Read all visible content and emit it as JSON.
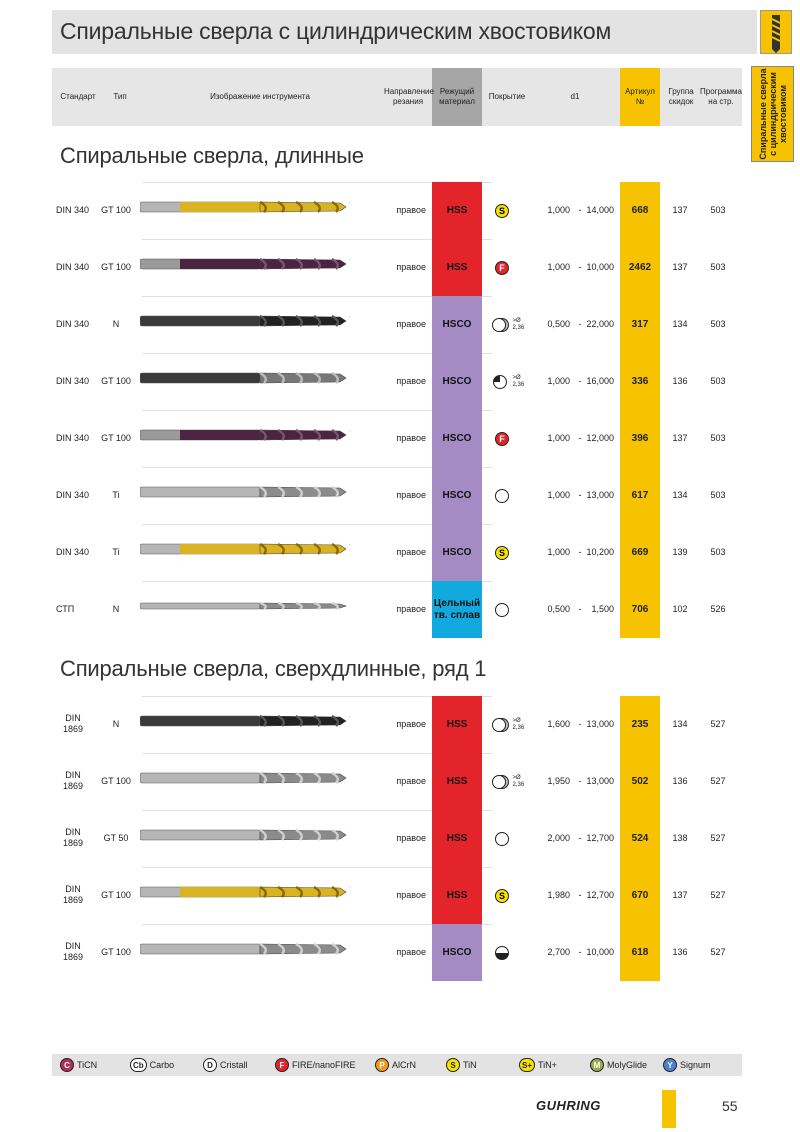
{
  "title": "Спиральные сверла с цилиндрическим хвостовиком",
  "side_tab": "Спиральные сверла с цилиндрическим хвостовиком",
  "headers": {
    "standard": "Стандарт",
    "type": "Тип",
    "image": "Изображение инструмента",
    "direction": "Направление резания",
    "material": "Режущий материал",
    "coating": "Покрытие",
    "d1": "d1",
    "article": "Артикул №",
    "group": "Группа скидок",
    "program": "Программа на стр."
  },
  "colors": {
    "hss": "#e3242b",
    "hsco": "#a48bc4",
    "carbide": "#12a9de",
    "article": "#f7c300",
    "band": "#e6e6e6"
  },
  "sections": [
    {
      "title": "Спиральные сверла, длинные",
      "rows": [
        {
          "std": "DIN 340",
          "type": "GT 100",
          "tool": "gold",
          "dir": "правое",
          "mat": "HSS",
          "mat_class": "hss",
          "coat": "S",
          "coat_note": "",
          "d_from": "1,000",
          "dash": "-",
          "d_to": "14,000",
          "article": "668",
          "group": "137",
          "page": "503"
        },
        {
          "std": "DIN 340",
          "type": "GT 100",
          "tool": "purple",
          "dir": "правое",
          "mat": "HSS",
          "mat_class": "hss",
          "coat": "F",
          "coat_note": "",
          "d_from": "1,000",
          "dash": "-",
          "d_to": "10,000",
          "article": "2462",
          "group": "137",
          "page": "503"
        },
        {
          "std": "DIN 340",
          "type": "N",
          "tool": "black",
          "dir": "правое",
          "mat": "HSCO",
          "mat_class": "hsco",
          "coat": "steam",
          "coat_note": ">Ø 2,36",
          "d_from": "0,500",
          "dash": "-",
          "d_to": "22,000",
          "article": "317",
          "group": "134",
          "page": "503"
        },
        {
          "std": "DIN 340",
          "type": "GT 100",
          "tool": "black-steel",
          "dir": "правое",
          "mat": "HSCO",
          "mat_class": "hsco",
          "coat": "half",
          "coat_note": ">Ø 2,36",
          "d_from": "1,000",
          "dash": "-",
          "d_to": "16,000",
          "article": "336",
          "group": "136",
          "page": "503"
        },
        {
          "std": "DIN 340",
          "type": "GT 100",
          "tool": "purple",
          "dir": "правое",
          "mat": "HSCO",
          "mat_class": "hsco",
          "coat": "F",
          "coat_note": "",
          "d_from": "1,000",
          "dash": "-",
          "d_to": "12,000",
          "article": "396",
          "group": "137",
          "page": "503"
        },
        {
          "std": "DIN 340",
          "type": "Ti",
          "tool": "silver",
          "dir": "правое",
          "mat": "HSCO",
          "mat_class": "hsco",
          "coat": "none",
          "coat_note": "",
          "d_from": "1,000",
          "dash": "-",
          "d_to": "13,000",
          "article": "617",
          "group": "134",
          "page": "503"
        },
        {
          "std": "DIN 340",
          "type": "Ti",
          "tool": "gold",
          "dir": "правое",
          "mat": "HSCO",
          "mat_class": "hsco",
          "coat": "S",
          "coat_note": "",
          "d_from": "1,000",
          "dash": "-",
          "d_to": "10,200",
          "article": "669",
          "group": "139",
          "page": "503"
        },
        {
          "std": "СТП",
          "type": "N",
          "tool": "silver-thin",
          "dir": "правое",
          "mat": "Цельный тв. сплав",
          "mat_class": "carbide",
          "coat": "none",
          "coat_note": "",
          "d_from": "0,500",
          "dash": "-",
          "d_to": "1,500",
          "article": "706",
          "group": "102",
          "page": "526"
        }
      ]
    },
    {
      "title": "Спиральные сверла, сверхдлинные, ряд 1",
      "rows": [
        {
          "std": "DIN 1869",
          "type": "N",
          "tool": "black",
          "dir": "правое",
          "mat": "HSS",
          "mat_class": "hss",
          "coat": "steam",
          "coat_note": ">Ø 2,36",
          "d_from": "1,600",
          "dash": "-",
          "d_to": "13,000",
          "article": "235",
          "group": "134",
          "page": "527"
        },
        {
          "std": "DIN 1869",
          "type": "GT 100",
          "tool": "silver",
          "dir": "правое",
          "mat": "HSS",
          "mat_class": "hss",
          "coat": "steam",
          "coat_note": ">Ø 2,36",
          "d_from": "1,950",
          "dash": "-",
          "d_to": "13,000",
          "article": "502",
          "group": "136",
          "page": "527"
        },
        {
          "std": "DIN 1869",
          "type": "GT 50",
          "tool": "silver",
          "dir": "правое",
          "mat": "HSS",
          "mat_class": "hss",
          "coat": "none",
          "coat_note": "",
          "d_from": "2,000",
          "dash": "-",
          "d_to": "12,700",
          "article": "524",
          "group": "138",
          "page": "527"
        },
        {
          "std": "DIN 1869",
          "type": "GT 100",
          "tool": "gold",
          "dir": "правое",
          "mat": "HSS",
          "mat_class": "hss",
          "coat": "S",
          "coat_note": "",
          "d_from": "1,980",
          "dash": "-",
          "d_to": "12,700",
          "article": "670",
          "group": "137",
          "page": "527"
        },
        {
          "std": "DIN 1869",
          "type": "GT 100",
          "tool": "silver",
          "dir": "правое",
          "mat": "HSCO",
          "mat_class": "hsco",
          "coat": "half-bottom",
          "coat_note": "",
          "d_from": "2,700",
          "dash": "-",
          "d_to": "10,000",
          "article": "618",
          "group": "136",
          "page": "527"
        }
      ]
    }
  ],
  "legend": [
    {
      "sym": "C",
      "label": "TiCN",
      "color": "#b0305a"
    },
    {
      "sym": "Cb",
      "label": "Carbo",
      "color": "#ffffff"
    },
    {
      "sym": "D",
      "label": "Cristall",
      "color": "#ffffff"
    },
    {
      "sym": "F",
      "label": "FIRE/nanoFIRE",
      "color": "#e3242b"
    },
    {
      "sym": "P",
      "label": "AlCrN",
      "color": "#f39a1e"
    },
    {
      "sym": "S",
      "label": "TiN",
      "color": "#f7e200"
    },
    {
      "sym": "S+",
      "label": "TiN+",
      "color": "#f7e200"
    },
    {
      "sym": "M",
      "label": "MolyGlide",
      "color": "#9aa84a"
    },
    {
      "sym": "Y",
      "label": "Signum",
      "color": "#4f7fd0"
    }
  ],
  "footer": {
    "logo": "GUHRING",
    "page": "55"
  }
}
